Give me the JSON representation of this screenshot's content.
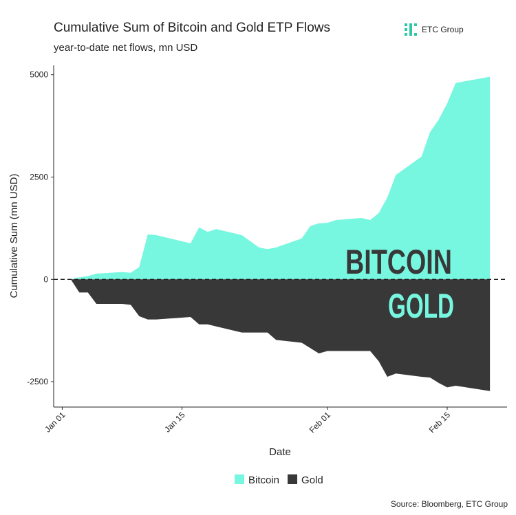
{
  "chart_data": {
    "type": "area",
    "title": "Cumulative Sum of Bitcoin and Gold ETP Flows",
    "subtitle": "year-to-date net flows, mn USD",
    "brand": "ETC Group",
    "source": "Source: Bloomberg, ETC Group",
    "x_label": "Date",
    "y_label": "Cumulative Sum (mn USD)",
    "x": [
      "Jan 02",
      "Jan 03",
      "Jan 04",
      "Jan 05",
      "Jan 08",
      "Jan 09",
      "Jan 10",
      "Jan 11",
      "Jan 12",
      "Jan 16",
      "Jan 17",
      "Jan 18",
      "Jan 19",
      "Jan 22",
      "Jan 23",
      "Jan 24",
      "Jan 25",
      "Jan 26",
      "Jan 29",
      "Jan 30",
      "Jan 31",
      "Feb 01",
      "Feb 02",
      "Feb 05",
      "Feb 06",
      "Feb 07",
      "Feb 08",
      "Feb 09",
      "Feb 12",
      "Feb 13",
      "Feb 14",
      "Feb 15",
      "Feb 16",
      "Feb 20"
    ],
    "series": [
      {
        "name": "Bitcoin",
        "color": "#77f6e0",
        "values": [
          0,
          50,
          80,
          140,
          180,
          160,
          300,
          1100,
          1080,
          880,
          1270,
          1160,
          1230,
          1080,
          930,
          780,
          740,
          780,
          1000,
          1300,
          1370,
          1380,
          1450,
          1500,
          1450,
          1620,
          2000,
          2550,
          3000,
          3600,
          3900,
          4300,
          4800,
          4950
        ]
      },
      {
        "name": "Gold",
        "color": "#383838",
        "values": [
          0,
          -320,
          -320,
          -600,
          -600,
          -620,
          -900,
          -980,
          -980,
          -920,
          -1100,
          -1100,
          -1150,
          -1300,
          -1300,
          -1300,
          -1300,
          -1480,
          -1550,
          -1680,
          -1810,
          -1750,
          -1750,
          -1750,
          -1750,
          -2000,
          -2380,
          -2300,
          -2380,
          -2400,
          -2530,
          -2640,
          -2600,
          -2730
        ]
      }
    ],
    "annotations": [
      {
        "text": "BITCOIN",
        "color": "#383838"
      },
      {
        "text": "GOLD",
        "color": "#77f6e0"
      }
    ],
    "xlim": [
      "Dec 31",
      "Feb 22"
    ],
    "xticks": [
      "Jan 01",
      "Jan 15",
      "Feb 01",
      "Feb 15"
    ],
    "ylim": [
      -3120,
      5230
    ],
    "yticks": [
      -2500,
      0,
      2500,
      5000
    ],
    "hline": 0,
    "grid": false,
    "legend": "bottom"
  }
}
